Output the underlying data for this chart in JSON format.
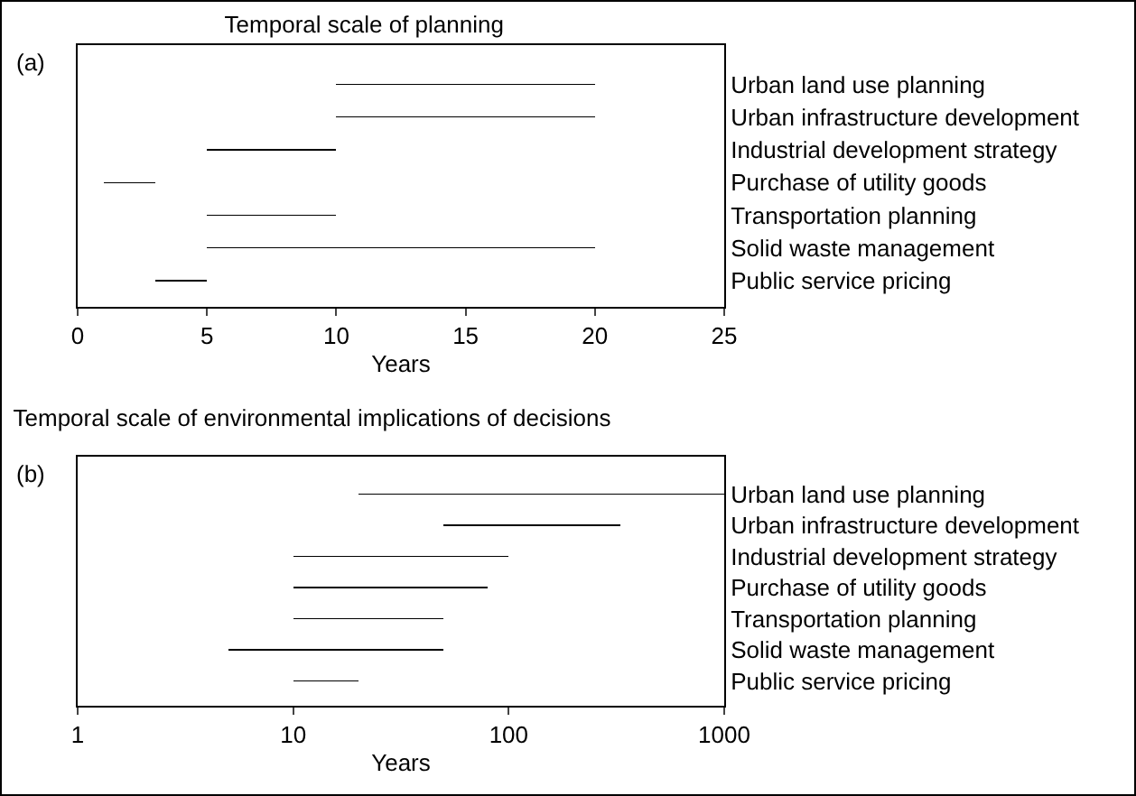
{
  "chart_data": [
    {
      "type": "bar",
      "orientation": "horizontal",
      "title": "Temporal scale of planning",
      "xlabel": "Years",
      "annotations": [
        "(a)"
      ],
      "categories": [
        "Urban land use planning",
        "Urban infrastructure development",
        "Industrial development strategy",
        "Purchase of utility goods",
        "Transportation planning",
        "Solid waste management",
        "Public service pricing"
      ],
      "base": [
        10,
        10,
        5,
        1,
        5,
        5,
        3
      ],
      "values": [
        10,
        10,
        5,
        2,
        5,
        15,
        2
      ],
      "color": "#000000",
      "xlim": [
        0,
        25
      ],
      "xticks": [
        0,
        5,
        10,
        15,
        20,
        25
      ],
      "grid": false
    },
    {
      "type": "bar",
      "orientation": "horizontal",
      "title": "Temporal scale of environmental implications of decisions",
      "xlabel": "Years",
      "annotations": [
        "(b)"
      ],
      "log": "x",
      "categories": [
        "Urban land use planning",
        "Urban infrastructure development",
        "Industrial development strategy",
        "Purchase of utility goods",
        "Transportation planning",
        "Solid waste management",
        "Public service pricing"
      ],
      "base": [
        20,
        50,
        10,
        10,
        10,
        5,
        10
      ],
      "values": [
        980,
        280,
        90,
        70,
        40,
        45,
        10
      ],
      "color": "#000000",
      "xlim": [
        1,
        1000
      ],
      "xticks": [
        1,
        10,
        100,
        1000
      ],
      "grid": false
    }
  ]
}
